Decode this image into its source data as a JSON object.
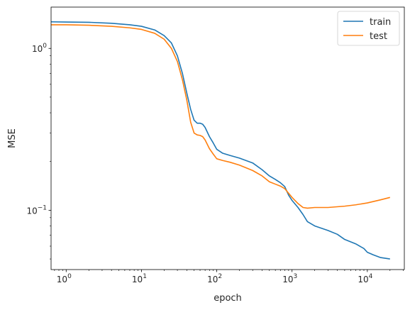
{
  "chart_data": {
    "type": "line",
    "xlabel": "epoch",
    "ylabel": "MSE",
    "xscale": "log",
    "yscale": "log",
    "xlim": [
      0.63,
      31000
    ],
    "ylim": [
      0.043,
      1.8
    ],
    "xticks": [
      {
        "value": 1,
        "label": "10",
        "exp": "0"
      },
      {
        "value": 10,
        "label": "10",
        "exp": "1"
      },
      {
        "value": 100,
        "label": "10",
        "exp": "2"
      },
      {
        "value": 1000,
        "label": "10",
        "exp": "3"
      },
      {
        "value": 10000,
        "label": "10",
        "exp": "4"
      }
    ],
    "yticks": [
      {
        "value": 1,
        "label": "10",
        "exp": "0"
      },
      {
        "value": 0.1,
        "label": "10",
        "exp": "−1"
      }
    ],
    "legend": {
      "position": "upper right"
    },
    "series": [
      {
        "name": "train",
        "color": "#1f77b4",
        "points": [
          [
            0.63,
            1.46
          ],
          [
            1,
            1.455
          ],
          [
            2,
            1.45
          ],
          [
            4,
            1.43
          ],
          [
            7,
            1.4
          ],
          [
            10,
            1.37
          ],
          [
            15,
            1.3
          ],
          [
            20,
            1.2
          ],
          [
            25,
            1.08
          ],
          [
            30,
            0.9
          ],
          [
            35,
            0.7
          ],
          [
            40,
            0.53
          ],
          [
            45,
            0.42
          ],
          [
            50,
            0.36
          ],
          [
            55,
            0.345
          ],
          [
            60,
            0.345
          ],
          [
            65,
            0.34
          ],
          [
            70,
            0.325
          ],
          [
            80,
            0.285
          ],
          [
            90,
            0.26
          ],
          [
            100,
            0.238
          ],
          [
            120,
            0.225
          ],
          [
            150,
            0.218
          ],
          [
            200,
            0.21
          ],
          [
            300,
            0.196
          ],
          [
            400,
            0.178
          ],
          [
            500,
            0.163
          ],
          [
            600,
            0.155
          ],
          [
            700,
            0.148
          ],
          [
            800,
            0.14
          ],
          [
            900,
            0.124
          ],
          [
            1000,
            0.115
          ],
          [
            1200,
            0.104
          ],
          [
            1400,
            0.094
          ],
          [
            1600,
            0.085
          ],
          [
            2000,
            0.08
          ],
          [
            3000,
            0.075
          ],
          [
            4000,
            0.071
          ],
          [
            5000,
            0.066
          ],
          [
            7000,
            0.062
          ],
          [
            9000,
            0.058
          ],
          [
            10000,
            0.055
          ],
          [
            12000,
            0.053
          ],
          [
            15000,
            0.051
          ],
          [
            20000,
            0.05
          ]
        ]
      },
      {
        "name": "test",
        "color": "#ff7f0e",
        "points": [
          [
            0.63,
            1.4
          ],
          [
            1,
            1.4
          ],
          [
            2,
            1.39
          ],
          [
            4,
            1.37
          ],
          [
            7,
            1.34
          ],
          [
            10,
            1.31
          ],
          [
            15,
            1.24
          ],
          [
            20,
            1.14
          ],
          [
            25,
            1.0
          ],
          [
            30,
            0.83
          ],
          [
            35,
            0.64
          ],
          [
            40,
            0.48
          ],
          [
            45,
            0.35
          ],
          [
            50,
            0.3
          ],
          [
            55,
            0.292
          ],
          [
            60,
            0.29
          ],
          [
            65,
            0.285
          ],
          [
            70,
            0.272
          ],
          [
            80,
            0.24
          ],
          [
            90,
            0.222
          ],
          [
            100,
            0.208
          ],
          [
            120,
            0.203
          ],
          [
            150,
            0.198
          ],
          [
            200,
            0.19
          ],
          [
            300,
            0.176
          ],
          [
            400,
            0.163
          ],
          [
            500,
            0.15
          ],
          [
            600,
            0.145
          ],
          [
            700,
            0.141
          ],
          [
            800,
            0.136
          ],
          [
            1000,
            0.12
          ],
          [
            1200,
            0.11
          ],
          [
            1400,
            0.104
          ],
          [
            1600,
            0.103
          ],
          [
            2000,
            0.104
          ],
          [
            3000,
            0.104
          ],
          [
            5000,
            0.106
          ],
          [
            7000,
            0.108
          ],
          [
            10000,
            0.111
          ],
          [
            15000,
            0.116
          ],
          [
            20000,
            0.12
          ]
        ]
      }
    ]
  }
}
